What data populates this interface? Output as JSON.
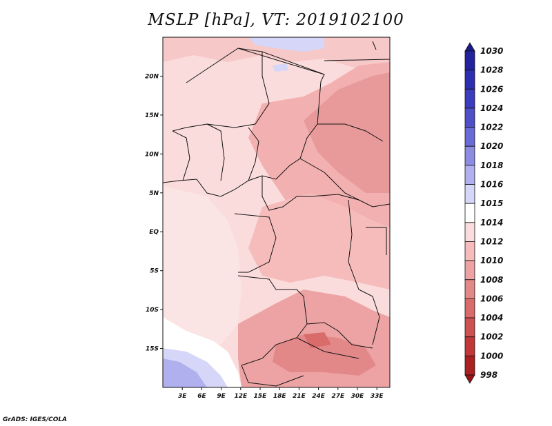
{
  "title": "MSLP [hPa], VT: 2019102100",
  "credit": "GrADS: IGES/COLA",
  "map": {
    "lon_ticks": [
      "3E",
      "6E",
      "9E",
      "12E",
      "15E",
      "18E",
      "21E",
      "24E",
      "27E",
      "30E",
      "33E"
    ],
    "lat_ticks": [
      "20N",
      "15N",
      "10N",
      "5N",
      "EQ",
      "5S",
      "10S",
      "15S"
    ],
    "lon_range": [
      0,
      35
    ],
    "lat_range": [
      -20,
      25
    ]
  },
  "colorbar": {
    "levels": [
      "1030",
      "1028",
      "1026",
      "1024",
      "1022",
      "1020",
      "1018",
      "1016",
      "1015",
      "1014",
      "1012",
      "1010",
      "1008",
      "1006",
      "1004",
      "1002",
      "1000",
      "998"
    ],
    "colors": [
      "#1a1a8c",
      "#23239e",
      "#2e2eb0",
      "#3c3cbe",
      "#4f4fc8",
      "#6a6ad6",
      "#8c8ce2",
      "#b0b0ee",
      "#d6d6f8",
      "#ffffff",
      "#fbdcdc",
      "#f6bcbc",
      "#eda3a3",
      "#e38888",
      "#d96b6b",
      "#cf5050",
      "#c23838",
      "#ab2020",
      "#981414"
    ]
  }
}
